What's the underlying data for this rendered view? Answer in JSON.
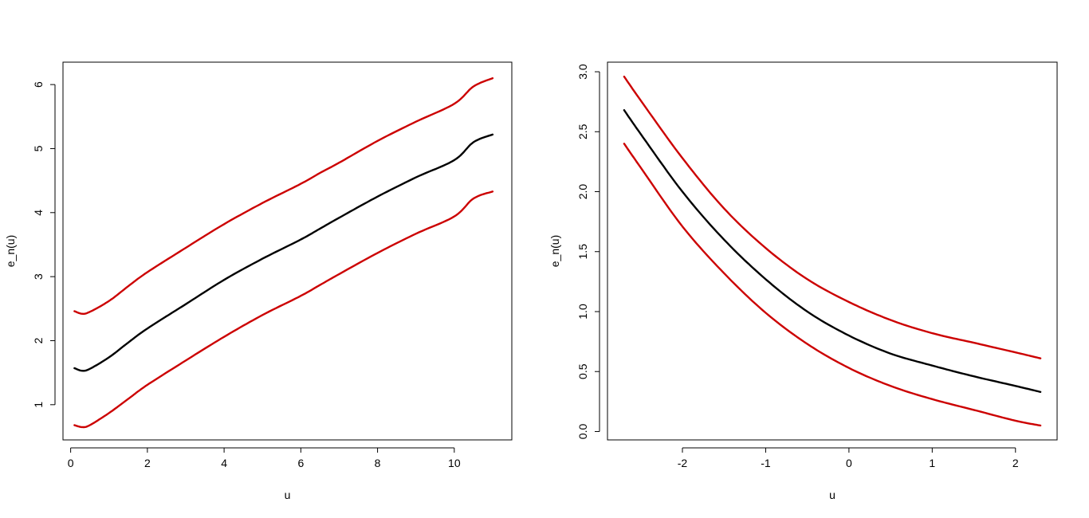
{
  "colors": {
    "central": "#000000",
    "bands": "#cc0000",
    "axis": "#000000",
    "background": "#ffffff"
  },
  "chart_data": [
    {
      "type": "line",
      "xlabel": "u",
      "ylabel": "e_n(u)",
      "xlim": [
        -0.2,
        11.5
      ],
      "ylim": [
        0.45,
        6.35
      ],
      "xticks": [
        0,
        2,
        4,
        6,
        8,
        10
      ],
      "yticks": [
        1,
        2,
        3,
        4,
        5,
        6
      ],
      "grid": false,
      "legend": "none",
      "series": [
        {
          "role": "upper",
          "color": "#cc0000",
          "x": [
            0.1,
            0.3,
            0.5,
            1,
            1.5,
            2,
            3,
            4,
            5,
            6,
            6.5,
            7,
            8,
            9,
            10,
            10.5,
            11
          ],
          "y": [
            2.46,
            2.42,
            2.45,
            2.62,
            2.85,
            3.07,
            3.45,
            3.82,
            4.15,
            4.45,
            4.62,
            4.78,
            5.12,
            5.42,
            5.7,
            5.97,
            6.1
          ]
        },
        {
          "role": "central",
          "color": "#000000",
          "x": [
            0.1,
            0.3,
            0.5,
            1,
            1.5,
            2,
            3,
            4,
            5,
            6,
            6.5,
            7,
            8,
            9,
            10,
            10.5,
            11
          ],
          "y": [
            1.57,
            1.53,
            1.56,
            1.74,
            1.97,
            2.19,
            2.57,
            2.95,
            3.28,
            3.58,
            3.75,
            3.92,
            4.25,
            4.55,
            4.82,
            5.1,
            5.22
          ]
        },
        {
          "role": "lower",
          "color": "#cc0000",
          "x": [
            0.1,
            0.3,
            0.5,
            1,
            1.5,
            2,
            3,
            4,
            5,
            6,
            6.5,
            7,
            8,
            9,
            10,
            10.5,
            11
          ],
          "y": [
            0.68,
            0.65,
            0.68,
            0.87,
            1.09,
            1.31,
            1.69,
            2.06,
            2.4,
            2.7,
            2.87,
            3.04,
            3.37,
            3.67,
            3.94,
            4.22,
            4.33
          ]
        }
      ]
    },
    {
      "type": "line",
      "xlabel": "u",
      "ylabel": "e_n(u)",
      "xlim": [
        -2.9,
        2.5
      ],
      "ylim": [
        -0.07,
        3.08
      ],
      "xticks": [
        -2,
        -1,
        0,
        1,
        2
      ],
      "yticks": [
        0.0,
        0.5,
        1.0,
        1.5,
        2.0,
        2.5,
        3.0
      ],
      "yticklabels": [
        "0.0",
        "0.5",
        "1.0",
        "1.5",
        "2.0",
        "2.5",
        "3.0"
      ],
      "grid": false,
      "legend": "none",
      "series": [
        {
          "role": "upper",
          "color": "#cc0000",
          "x": [
            -2.7,
            -2.5,
            -2,
            -1.5,
            -1,
            -0.5,
            0,
            0.5,
            1,
            1.5,
            2,
            2.3
          ],
          "y": [
            2.96,
            2.76,
            2.28,
            1.86,
            1.53,
            1.27,
            1.08,
            0.93,
            0.82,
            0.74,
            0.66,
            0.61
          ]
        },
        {
          "role": "central",
          "color": "#000000",
          "x": [
            -2.7,
            -2.5,
            -2,
            -1.5,
            -1,
            -0.5,
            0,
            0.5,
            1,
            1.5,
            2,
            2.3
          ],
          "y": [
            2.68,
            2.48,
            2.0,
            1.6,
            1.27,
            1.0,
            0.8,
            0.65,
            0.55,
            0.46,
            0.38,
            0.33
          ]
        },
        {
          "role": "lower",
          "color": "#cc0000",
          "x": [
            -2.7,
            -2.5,
            -2,
            -1.5,
            -1,
            -0.5,
            0,
            0.5,
            1,
            1.5,
            2,
            2.3
          ],
          "y": [
            2.4,
            2.2,
            1.71,
            1.32,
            0.99,
            0.73,
            0.53,
            0.38,
            0.27,
            0.18,
            0.09,
            0.05
          ]
        }
      ]
    }
  ]
}
